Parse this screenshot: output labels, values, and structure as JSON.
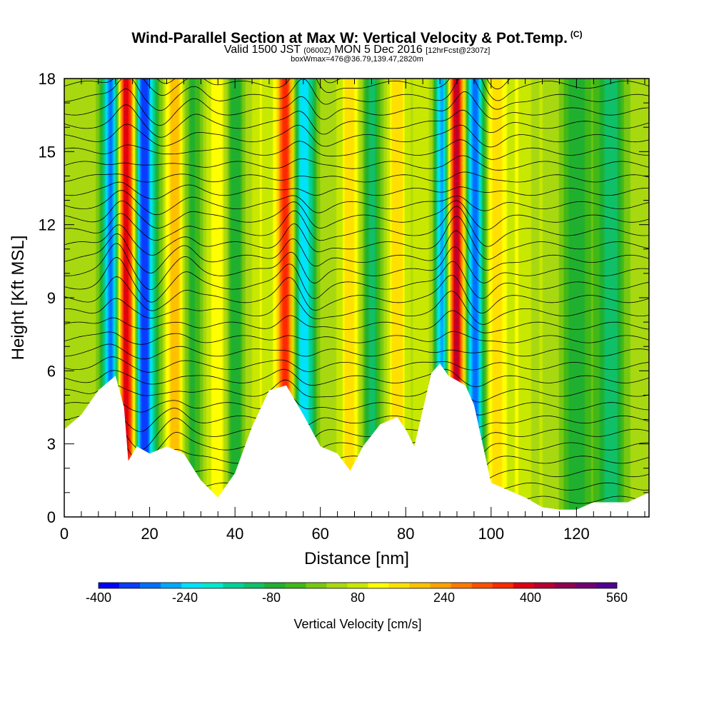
{
  "header": {
    "title": "Wind-Parallel Section at Max W: Vertical Velocity & Pot.Temp.",
    "copyright": "(C)",
    "valid_prefix": "Valid 1500 JST",
    "valid_utc": "(0600Z)",
    "valid_date": "MON 5 Dec 2016",
    "forecast": "[12hrFcst@2307z]",
    "boxinfo": "boxWmax=476@36.79,139.47,2820m"
  },
  "chart_data": {
    "type": "heatmap",
    "title": "Wind-Parallel Section at Max W: Vertical Velocity & Pot.Temp.",
    "xlabel": "Distance [nm]",
    "ylabel": "Height [Kft MSL]",
    "xlim": [
      0,
      137
    ],
    "ylim": [
      0,
      18
    ],
    "x_ticks": [
      "0",
      "20",
      "40",
      "60",
      "80",
      "100",
      "120"
    ],
    "y_ticks": [
      "0",
      "3",
      "6",
      "9",
      "12",
      "15",
      "18"
    ],
    "terrain_height_kft": {
      "x": [
        0,
        4,
        8,
        12,
        14,
        15,
        17,
        20,
        24,
        28,
        32,
        36,
        40,
        44,
        48,
        52,
        56,
        60,
        64,
        67,
        70,
        74,
        78,
        80,
        82,
        84,
        86,
        88,
        90,
        94,
        96,
        100,
        104,
        108,
        112,
        116,
        120,
        124,
        128,
        132,
        137
      ],
      "y": [
        3.6,
        4.2,
        5.2,
        5.8,
        4.5,
        2.3,
        2.9,
        2.6,
        2.9,
        2.6,
        1.5,
        0.8,
        1.8,
        3.7,
        5.2,
        5.4,
        4.2,
        2.9,
        2.6,
        1.9,
        2.9,
        3.8,
        4.1,
        3.6,
        2.9,
        4.4,
        5.9,
        6.3,
        5.8,
        5.4,
        4.6,
        1.4,
        1.1,
        0.8,
        0.4,
        0.3,
        0.3,
        0.6,
        0.6,
        0.6,
        1.0
      ]
    },
    "colorbar": {
      "title": "Vertical Velocity [cm/s]",
      "min": -400,
      "max": 560,
      "step": 40,
      "tick_labels": [
        "-400",
        "-240",
        "-80",
        "80",
        "240",
        "400",
        "560"
      ],
      "colors": [
        "#0000ff",
        "#0a3cff",
        "#0070ff",
        "#00a8ff",
        "#00e0ff",
        "#00e8cc",
        "#00d098",
        "#10c068",
        "#20b030",
        "#40b818",
        "#78c810",
        "#a8d810",
        "#c8e800",
        "#ffff00",
        "#ffe000",
        "#ffc000",
        "#ffa000",
        "#ff7800",
        "#ff5000",
        "#ff2800",
        "#e00010",
        "#b80030",
        "#900050",
        "#700070",
        "#500090"
      ]
    },
    "series": [
      {
        "name": "Vertical Velocity",
        "bands": [
          {
            "x": 11,
            "w": 2.0,
            "v": -300
          },
          {
            "x": 13.5,
            "w": 1.4,
            "v": 120
          },
          {
            "x": 15,
            "w": 2.2,
            "v": 480
          },
          {
            "x": 18.5,
            "w": 2.6,
            "v": -380
          },
          {
            "x": 22,
            "w": 2.0,
            "v": 40
          },
          {
            "x": 26,
            "w": 2.2,
            "v": 240
          },
          {
            "x": 30,
            "w": 2.0,
            "v": -60
          },
          {
            "x": 36,
            "w": 2.2,
            "v": 160
          },
          {
            "x": 40,
            "w": 2.0,
            "v": -80
          },
          {
            "x": 46,
            "w": 2.2,
            "v": 120
          },
          {
            "x": 52,
            "w": 2.2,
            "v": 400
          },
          {
            "x": 56,
            "w": 2.6,
            "v": -240
          },
          {
            "x": 62,
            "w": 2.0,
            "v": 80
          },
          {
            "x": 67,
            "w": 2.0,
            "v": 200
          },
          {
            "x": 72,
            "w": 2.0,
            "v": -100
          },
          {
            "x": 78,
            "w": 2.0,
            "v": 200
          },
          {
            "x": 84,
            "w": 2.0,
            "v": 120
          },
          {
            "x": 88.5,
            "w": 1.6,
            "v": -300
          },
          {
            "x": 92,
            "w": 2.2,
            "v": 480
          },
          {
            "x": 96,
            "w": 2.4,
            "v": -320
          },
          {
            "x": 101,
            "w": 2.2,
            "v": 200
          },
          {
            "x": 106,
            "w": 2.6,
            "v": 120
          },
          {
            "x": 112,
            "w": 3.0,
            "v": 80
          },
          {
            "x": 120,
            "w": 3.2,
            "v": -80
          },
          {
            "x": 128,
            "w": 3.0,
            "v": -120
          }
        ]
      }
    ]
  }
}
